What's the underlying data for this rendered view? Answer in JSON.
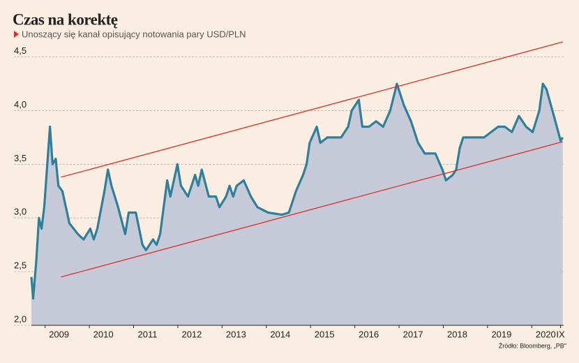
{
  "chart_data": {
    "type": "area",
    "title": "Czas na korektę",
    "subtitle": "Unoszący się kanał opisujący notowania pary USD/PLN",
    "source": "Źródło: Bloomberg, „PB\"",
    "xlim": [
      2008.69,
      2020.72
    ],
    "ylim": [
      2.0,
      4.64
    ],
    "xticks": [
      {
        "value": 2009,
        "label": "2009"
      },
      {
        "value": 2010,
        "label": "2010"
      },
      {
        "value": 2011,
        "label": "2011"
      },
      {
        "value": 2012,
        "label": "2012"
      },
      {
        "value": 2013,
        "label": "2013"
      },
      {
        "value": 2014,
        "label": "2014"
      },
      {
        "value": 2015,
        "label": "2015"
      },
      {
        "value": 2016,
        "label": "2016"
      },
      {
        "value": 2017,
        "label": "2017"
      },
      {
        "value": 2018,
        "label": "2018"
      },
      {
        "value": 2019,
        "label": "2019"
      },
      {
        "value": 2020,
        "label": "2020"
      },
      {
        "value": 2020.65,
        "label": "IX"
      }
    ],
    "yticks": [
      {
        "value": 2.0,
        "label": "2,0"
      },
      {
        "value": 2.5,
        "label": "2,5"
      },
      {
        "value": 3.0,
        "label": "3,0"
      },
      {
        "value": 3.5,
        "label": "3,5"
      },
      {
        "value": 4.0,
        "label": "4,0"
      },
      {
        "value": 4.5,
        "label": "4,5"
      }
    ],
    "grid": true,
    "fill_color": "#c6cad8",
    "series": [
      {
        "color": "#2f7f9b",
        "x": [
          2008.69,
          2008.73,
          2008.8,
          2008.86,
          2008.92,
          2008.98,
          2009.05,
          2009.11,
          2009.17,
          2009.24,
          2009.3,
          2009.39,
          2009.55,
          2009.74,
          2009.87,
          2010.02,
          2010.1,
          2010.18,
          2010.34,
          2010.42,
          2010.5,
          2010.65,
          2010.81,
          2010.89,
          2011.05,
          2011.2,
          2011.28,
          2011.44,
          2011.52,
          2011.6,
          2011.68,
          2011.76,
          2011.83,
          2011.99,
          2012.07,
          2012.23,
          2012.39,
          2012.46,
          2012.54,
          2012.7,
          2012.86,
          2012.94,
          2013.09,
          2013.17,
          2013.25,
          2013.33,
          2013.49,
          2013.65,
          2013.8,
          2014.04,
          2014.35,
          2014.51,
          2014.67,
          2014.83,
          2014.91,
          2014.98,
          2015.14,
          2015.22,
          2015.38,
          2015.54,
          2015.69,
          2015.85,
          2015.93,
          2016.09,
          2016.17,
          2016.32,
          2016.48,
          2016.64,
          2016.8,
          2016.95,
          2017.11,
          2017.27,
          2017.43,
          2017.58,
          2017.82,
          2017.98,
          2018.06,
          2018.21,
          2018.29,
          2018.37,
          2018.45,
          2018.69,
          2018.92,
          2019.08,
          2019.24,
          2019.39,
          2019.55,
          2019.71,
          2019.87,
          2020.02,
          2020.17,
          2020.25,
          2020.33,
          2020.5,
          2020.65,
          2020.7
        ],
        "values": [
          2.45,
          2.25,
          2.6,
          3.0,
          2.9,
          3.1,
          3.5,
          3.85,
          3.5,
          3.55,
          3.3,
          3.25,
          2.95,
          2.85,
          2.8,
          2.9,
          2.8,
          2.9,
          3.25,
          3.45,
          3.3,
          3.1,
          2.85,
          3.05,
          3.05,
          2.75,
          2.7,
          2.8,
          2.75,
          2.85,
          3.1,
          3.35,
          3.2,
          3.5,
          3.3,
          3.2,
          3.4,
          3.3,
          3.45,
          3.2,
          3.2,
          3.1,
          3.2,
          3.3,
          3.2,
          3.3,
          3.35,
          3.2,
          3.1,
          3.05,
          3.03,
          3.05,
          3.25,
          3.4,
          3.5,
          3.7,
          3.85,
          3.7,
          3.75,
          3.75,
          3.75,
          3.85,
          4.0,
          4.1,
          3.85,
          3.85,
          3.9,
          3.85,
          4.0,
          4.25,
          4.05,
          3.9,
          3.7,
          3.6,
          3.6,
          3.45,
          3.35,
          3.4,
          3.45,
          3.65,
          3.75,
          3.75,
          3.75,
          3.8,
          3.85,
          3.85,
          3.8,
          3.95,
          3.85,
          3.8,
          4.0,
          4.25,
          4.2,
          3.95,
          3.72,
          3.75
        ]
      },
      {
        "color": "#d8302a",
        "x": [
          2009.36,
          2020.7
        ],
        "values": [
          3.38,
          4.64
        ]
      },
      {
        "color": "#d8302a",
        "x": [
          2009.36,
          2020.7
        ],
        "values": [
          2.45,
          3.71
        ]
      }
    ]
  }
}
